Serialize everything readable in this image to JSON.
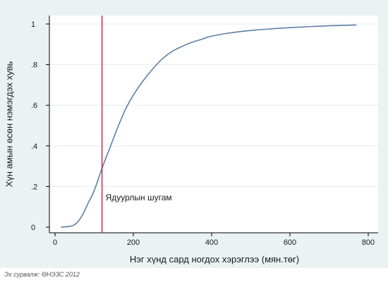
{
  "chart_data": {
    "type": "line",
    "title": "",
    "xlabel": "Нэг хүнд сард ногдох хэрэглээ (мян.төг)",
    "ylabel": "Хүн амын өсөн нэмэгдэх хувь",
    "xlim": [
      0,
      800
    ],
    "ylim": [
      0,
      1
    ],
    "x_ticks": [
      0,
      200,
      400,
      600,
      800
    ],
    "x_tick_labels": [
      "0",
      "200",
      "400",
      "600",
      "800"
    ],
    "y_ticks": [
      0,
      0.2,
      0.4,
      0.6,
      0.8,
      1
    ],
    "y_tick_labels": [
      "0",
      ".2",
      ".4",
      ".6",
      ".8",
      "1"
    ],
    "grid": {
      "horizontal": true,
      "vertical": false
    },
    "legend": "none",
    "series": [
      {
        "x": [
          15,
          40,
          55,
          70,
          85,
          100,
          120,
          140,
          160,
          180,
          200,
          225,
          250,
          275,
          300,
          325,
          350,
          375,
          400,
          450,
          500,
          550,
          600,
          650,
          700,
          770
        ],
        "y": [
          0.0,
          0.005,
          0.02,
          0.06,
          0.12,
          0.18,
          0.29,
          0.39,
          0.49,
          0.58,
          0.65,
          0.72,
          0.78,
          0.83,
          0.866,
          0.89,
          0.91,
          0.925,
          0.94,
          0.957,
          0.968,
          0.976,
          0.982,
          0.987,
          0.991,
          0.995
        ],
        "color": "#5e7fa6"
      }
    ],
    "reference_line": {
      "x": 120,
      "label": "Ядуурлын шугам",
      "color": "#c0143c"
    }
  },
  "footer": {
    "source": "Эх сурвалж: ӨНЭЗС 2012"
  },
  "colors": {
    "plot_background": "#ffffff",
    "outer_background": "#eaf2f3",
    "grid": "#e4ebee",
    "axis": "#000000",
    "line": "#5e7fa6",
    "reference": "#c0143c",
    "text": "#1a1a1a"
  }
}
